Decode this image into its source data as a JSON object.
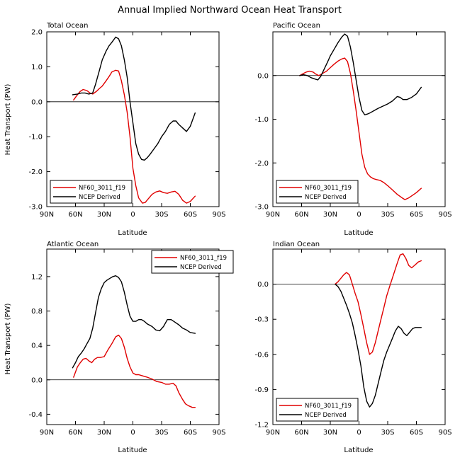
{
  "figure": {
    "suptitle": "Annual Implied Northward Ocean Heat Transport"
  },
  "colors": {
    "model": "#e00000",
    "obs": "#000000",
    "axis": "#000000",
    "zero_line": "#000000"
  },
  "chart_data": [
    {
      "type": "line",
      "title": "Total Ocean",
      "xlabel": "Latitude",
      "ylabel": "Heat Transport (PW)",
      "x_note": "x = degrees latitude, negative = north, positive = south",
      "xlim": [
        -90,
        90
      ],
      "ylim": [
        -3.0,
        2.0
      ],
      "xticks": [
        -90,
        -60,
        -30,
        0,
        30,
        60,
        90
      ],
      "xtick_labels": [
        "90N",
        "60N",
        "30N",
        "0",
        "30S",
        "60S",
        "90S"
      ],
      "yticks": [
        -3.0,
        -2.0,
        -1.0,
        0.0,
        1.0,
        2.0
      ],
      "ytick_labels": [
        "-3.0",
        "-2.0",
        "-1.0",
        "0.0",
        "1.0",
        "2.0"
      ],
      "legend": {
        "position": "bottom-left",
        "entries": [
          "NF60_3011_f19",
          "NCEP Derived"
        ]
      },
      "series": [
        {
          "name": "NF60_3011_f19",
          "color": "#e00000",
          "x": [
            -62,
            -58,
            -55,
            -52,
            -48,
            -45,
            -42,
            -38,
            -35,
            -32,
            -28,
            -25,
            -22,
            -18,
            -15,
            -12,
            -9,
            -6,
            -3,
            0,
            3,
            6,
            10,
            13,
            16,
            20,
            24,
            28,
            32,
            36,
            40,
            44,
            48,
            52,
            56,
            60,
            65
          ],
          "y": [
            0.05,
            0.2,
            0.3,
            0.35,
            0.32,
            0.25,
            0.22,
            0.3,
            0.38,
            0.45,
            0.6,
            0.72,
            0.85,
            0.9,
            0.88,
            0.6,
            0.2,
            -0.3,
            -1.0,
            -1.9,
            -2.4,
            -2.75,
            -2.9,
            -2.88,
            -2.78,
            -2.65,
            -2.58,
            -2.55,
            -2.6,
            -2.62,
            -2.58,
            -2.56,
            -2.65,
            -2.82,
            -2.9,
            -2.85,
            -2.7
          ]
        },
        {
          "name": "NCEP Derived",
          "color": "#000000",
          "x": [
            -63,
            -58,
            -54,
            -50,
            -46,
            -42,
            -39,
            -35,
            -32,
            -28,
            -25,
            -22,
            -18,
            -15,
            -12,
            -9,
            -6,
            -3,
            0,
            3,
            6,
            9,
            12,
            15,
            18,
            22,
            26,
            30,
            34,
            38,
            42,
            45,
            48,
            52,
            56,
            60,
            65
          ],
          "y": [
            0.2,
            0.22,
            0.25,
            0.25,
            0.22,
            0.25,
            0.5,
            0.9,
            1.2,
            1.45,
            1.6,
            1.7,
            1.85,
            1.8,
            1.6,
            1.2,
            0.7,
            0.0,
            -0.6,
            -1.2,
            -1.5,
            -1.65,
            -1.67,
            -1.6,
            -1.5,
            -1.35,
            -1.2,
            -1.0,
            -0.85,
            -0.65,
            -0.55,
            -0.55,
            -0.65,
            -0.75,
            -0.85,
            -0.7,
            -0.32
          ]
        }
      ]
    },
    {
      "type": "line",
      "title": "Pacific Ocean",
      "xlabel": "Latitude",
      "ylabel": "",
      "xlim": [
        -90,
        90
      ],
      "ylim": [
        -3.0,
        1.0
      ],
      "xticks": [
        -90,
        -60,
        -30,
        0,
        30,
        60,
        90
      ],
      "xtick_labels": [
        "90N",
        "60N",
        "30N",
        "0",
        "30S",
        "60S",
        "90S"
      ],
      "yticks": [
        -3.0,
        -2.0,
        -1.0,
        0.0
      ],
      "ytick_labels": [
        "-3.0",
        "-2.0",
        "-1.0",
        "0.0"
      ],
      "legend": {
        "position": "bottom-left",
        "entries": [
          "NF60_3011_f19",
          "NCEP Derived"
        ]
      },
      "series": [
        {
          "name": "NF60_3011_f19",
          "color": "#e00000",
          "x": [
            -62,
            -58,
            -55,
            -52,
            -48,
            -45,
            -42,
            -38,
            -34,
            -30,
            -26,
            -22,
            -18,
            -15,
            -12,
            -9,
            -6,
            -3,
            0,
            3,
            6,
            9,
            12,
            15,
            18,
            22,
            26,
            30,
            35,
            40,
            45,
            48,
            52,
            56,
            60,
            65
          ],
          "y": [
            0.0,
            0.05,
            0.08,
            0.1,
            0.08,
            0.03,
            0.0,
            0.05,
            0.1,
            0.18,
            0.26,
            0.33,
            0.38,
            0.4,
            0.32,
            0.05,
            -0.35,
            -0.8,
            -1.3,
            -1.8,
            -2.1,
            -2.25,
            -2.32,
            -2.36,
            -2.38,
            -2.4,
            -2.45,
            -2.52,
            -2.62,
            -2.72,
            -2.8,
            -2.84,
            -2.8,
            -2.74,
            -2.68,
            -2.58
          ]
        },
        {
          "name": "NCEP Derived",
          "color": "#000000",
          "x": [
            -62,
            -58,
            -54,
            -50,
            -46,
            -43,
            -40,
            -37,
            -33,
            -30,
            -26,
            -22,
            -18,
            -15,
            -12,
            -9,
            -6,
            -3,
            0,
            3,
            6,
            9,
            12,
            16,
            20,
            25,
            30,
            35,
            40,
            43,
            46,
            50,
            55,
            60,
            65
          ],
          "y": [
            0.0,
            0.02,
            0.0,
            -0.05,
            -0.08,
            -0.1,
            -0.02,
            0.12,
            0.3,
            0.45,
            0.6,
            0.75,
            0.88,
            0.95,
            0.9,
            0.65,
            0.3,
            -0.1,
            -0.5,
            -0.8,
            -0.9,
            -0.88,
            -0.85,
            -0.8,
            -0.75,
            -0.7,
            -0.65,
            -0.58,
            -0.48,
            -0.5,
            -0.55,
            -0.55,
            -0.5,
            -0.42,
            -0.27
          ]
        }
      ]
    },
    {
      "type": "line",
      "title": "Atlantic Ocean",
      "xlabel": "Latitude",
      "ylabel": "Heat Transport (PW)",
      "xlim": [
        -90,
        90
      ],
      "ylim": [
        -0.52,
        1.52
      ],
      "xticks": [
        -90,
        -60,
        -30,
        0,
        30,
        60,
        90
      ],
      "xtick_labels": [
        "90N",
        "60N",
        "30N",
        "0",
        "30S",
        "60S",
        "90S"
      ],
      "yticks": [
        -0.4,
        0.0,
        0.4,
        0.8,
        1.2
      ],
      "ytick_labels": [
        "-0.4",
        "0.0",
        "0.4",
        "0.8",
        "1.2"
      ],
      "legend": {
        "position": "top-right",
        "entries": [
          "NF60_3011_f19",
          "NCEP Derived"
        ]
      },
      "series": [
        {
          "name": "NF60_3011_f19",
          "color": "#e00000",
          "x": [
            -62,
            -58,
            -55,
            -52,
            -49,
            -46,
            -43,
            -40,
            -37,
            -34,
            -30,
            -26,
            -22,
            -18,
            -15,
            -12,
            -9,
            -6,
            -3,
            0,
            3,
            6,
            9,
            12,
            15,
            20,
            25,
            30,
            34,
            38,
            42,
            45,
            48,
            52,
            55,
            58,
            62,
            65
          ],
          "y": [
            0.03,
            0.15,
            0.2,
            0.24,
            0.25,
            0.22,
            0.2,
            0.24,
            0.26,
            0.26,
            0.27,
            0.35,
            0.42,
            0.5,
            0.52,
            0.48,
            0.38,
            0.25,
            0.15,
            0.08,
            0.06,
            0.06,
            0.05,
            0.04,
            0.03,
            0.01,
            -0.02,
            -0.03,
            -0.05,
            -0.05,
            -0.04,
            -0.07,
            -0.15,
            -0.23,
            -0.28,
            -0.3,
            -0.32,
            -0.32
          ]
        },
        {
          "name": "NCEP Derived",
          "color": "#000000",
          "x": [
            -63,
            -60,
            -57,
            -54,
            -51,
            -48,
            -45,
            -42,
            -39,
            -36,
            -33,
            -30,
            -27,
            -24,
            -21,
            -18,
            -15,
            -12,
            -9,
            -6,
            -3,
            0,
            3,
            6,
            9,
            12,
            15,
            20,
            24,
            28,
            32,
            36,
            40,
            44,
            48,
            52,
            56,
            60,
            65
          ],
          "y": [
            0.14,
            0.2,
            0.27,
            0.31,
            0.36,
            0.42,
            0.48,
            0.6,
            0.78,
            0.96,
            1.06,
            1.13,
            1.16,
            1.18,
            1.2,
            1.21,
            1.19,
            1.14,
            1.02,
            0.87,
            0.74,
            0.68,
            0.68,
            0.7,
            0.7,
            0.68,
            0.65,
            0.62,
            0.58,
            0.57,
            0.62,
            0.7,
            0.7,
            0.67,
            0.64,
            0.6,
            0.58,
            0.55,
            0.54
          ]
        }
      ]
    },
    {
      "type": "line",
      "title": "Indian Ocean",
      "xlabel": "Latitude",
      "ylabel": "",
      "xlim": [
        -90,
        90
      ],
      "ylim": [
        -1.2,
        0.3
      ],
      "xticks": [
        -90,
        -60,
        -30,
        0,
        30,
        60,
        90
      ],
      "xtick_labels": [
        "90N",
        "60N",
        "30N",
        "0",
        "30S",
        "60S",
        "90S"
      ],
      "yticks": [
        -1.2,
        -0.9,
        -0.6,
        -0.3,
        0.0
      ],
      "ytick_labels": [
        "-1.2",
        "-0.9",
        "-0.6",
        "-0.3",
        "0.0"
      ],
      "legend": {
        "position": "bottom-left",
        "entries": [
          "NF60_3011_f19",
          "NCEP Derived"
        ]
      },
      "series": [
        {
          "name": "NF60_3011_f19",
          "color": "#e00000",
          "x": [
            -25,
            -22,
            -19,
            -16,
            -13,
            -10,
            -7,
            -4,
            -1,
            2,
            5,
            8,
            11,
            14,
            17,
            20,
            23,
            26,
            29,
            32,
            36,
            40,
            43,
            46,
            49,
            52,
            55,
            58,
            62,
            65
          ],
          "y": [
            0.0,
            0.02,
            0.05,
            0.08,
            0.1,
            0.08,
            0.0,
            -0.08,
            -0.15,
            -0.26,
            -0.38,
            -0.5,
            -0.6,
            -0.58,
            -0.5,
            -0.4,
            -0.3,
            -0.2,
            -0.1,
            -0.02,
            0.08,
            0.18,
            0.25,
            0.26,
            0.22,
            0.16,
            0.14,
            0.16,
            0.19,
            0.2
          ]
        },
        {
          "name": "NCEP Derived",
          "color": "#000000",
          "x": [
            -25,
            -22,
            -19,
            -16,
            -13,
            -10,
            -7,
            -4,
            -1,
            2,
            5,
            8,
            11,
            14,
            17,
            20,
            23,
            26,
            29,
            32,
            35,
            38,
            41,
            44,
            47,
            50,
            53,
            56,
            59,
            62,
            65
          ],
          "y": [
            0.0,
            -0.02,
            -0.06,
            -0.12,
            -0.18,
            -0.25,
            -0.33,
            -0.44,
            -0.56,
            -0.7,
            -0.88,
            -1.0,
            -1.05,
            -1.02,
            -0.95,
            -0.85,
            -0.75,
            -0.65,
            -0.58,
            -0.52,
            -0.46,
            -0.4,
            -0.36,
            -0.38,
            -0.42,
            -0.44,
            -0.41,
            -0.38,
            -0.37,
            -0.37,
            -0.37
          ]
        }
      ]
    }
  ]
}
